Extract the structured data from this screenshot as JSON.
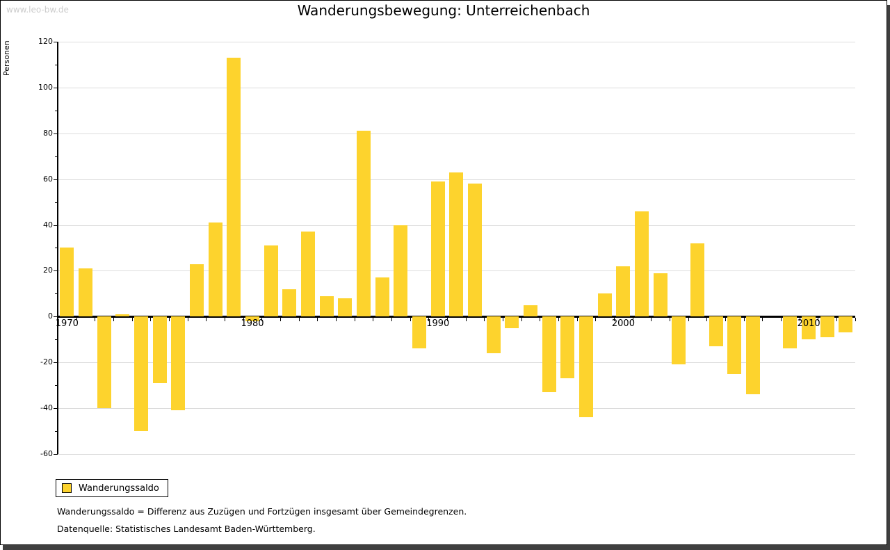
{
  "watermark": "www.leo-bw.de",
  "title": "Wanderungsbewegung: Unterreichenbach",
  "y_axis_label": "Personen",
  "legend": {
    "label": "Wanderungssaldo"
  },
  "footnotes": [
    "Wanderungssaldo = Differenz aus Zuzügen und Fortzügen insgesamt über Gemeindegrenzen.",
    "Datenquelle: Statistisches Landesamt Baden-Württemberg."
  ],
  "colors": {
    "bar": "#fdd32d",
    "grid": "#dcdcdc",
    "axis": "#000000",
    "watermark": "#cccccc",
    "shadow": "#3f3f3f"
  },
  "chart_data": {
    "type": "bar",
    "title": "Wanderungsbewegung: Unterreichenbach",
    "xlabel": "",
    "ylabel": "Personen",
    "series_name": "Wanderungssaldo",
    "years": [
      1970,
      1971,
      1972,
      1973,
      1974,
      1975,
      1976,
      1977,
      1978,
      1979,
      1980,
      1981,
      1982,
      1983,
      1984,
      1985,
      1986,
      1987,
      1988,
      1989,
      1990,
      1991,
      1992,
      1993,
      1994,
      1995,
      1996,
      1997,
      1998,
      1999,
      2000,
      2001,
      2002,
      2003,
      2004,
      2005,
      2006,
      2007,
      2008,
      2009,
      2010,
      2011,
      2012
    ],
    "values": [
      30,
      21,
      -40,
      1,
      -50,
      -29,
      -41,
      23,
      41,
      113,
      -2,
      31,
      12,
      37,
      9,
      8,
      81,
      17,
      40,
      -14,
      59,
      63,
      58,
      -16,
      -5,
      5,
      -33,
      -27,
      -44,
      10,
      22,
      46,
      19,
      -21,
      32,
      -13,
      -25,
      -34,
      0,
      -14,
      -10,
      -9,
      -7
    ],
    "ylim": [
      -60,
      120
    ],
    "ytick_major_step": 20,
    "ytick_minor_step": 10,
    "xtick_labels": [
      1970,
      1980,
      1990,
      2000,
      2010
    ],
    "grid": true,
    "legend_position": "bottom-left"
  }
}
